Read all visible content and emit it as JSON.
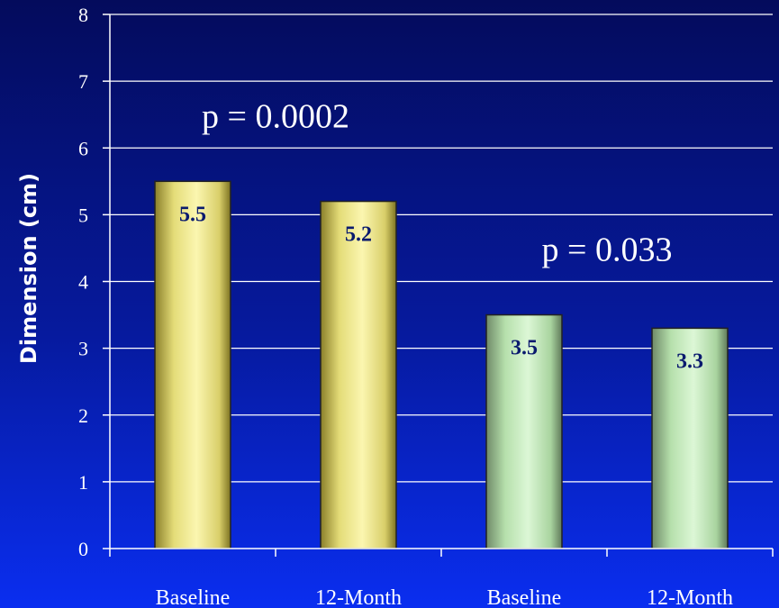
{
  "chart_data": {
    "type": "bar",
    "ylabel": "Dimension (cm)",
    "ylim": [
      0,
      8
    ],
    "yticks": [
      "0",
      "1",
      "2",
      "3",
      "4",
      "5",
      "6",
      "7",
      "8"
    ],
    "grid": true,
    "categories": [
      "Baseline",
      "12-Month",
      "Baseline",
      "12-Month"
    ],
    "values": [
      5.5,
      5.2,
      3.5,
      3.3
    ],
    "value_labels": [
      "5.5",
      "5.2",
      "3.5",
      "3.3"
    ],
    "bar_colors": [
      "#e8e27a",
      "#e8e27a",
      "#b8e8b0",
      "#b8e8b0"
    ],
    "annotations": [
      {
        "text": "p = 0.0002",
        "group": 1
      },
      {
        "text": "p = 0.033",
        "group": 2
      }
    ]
  }
}
